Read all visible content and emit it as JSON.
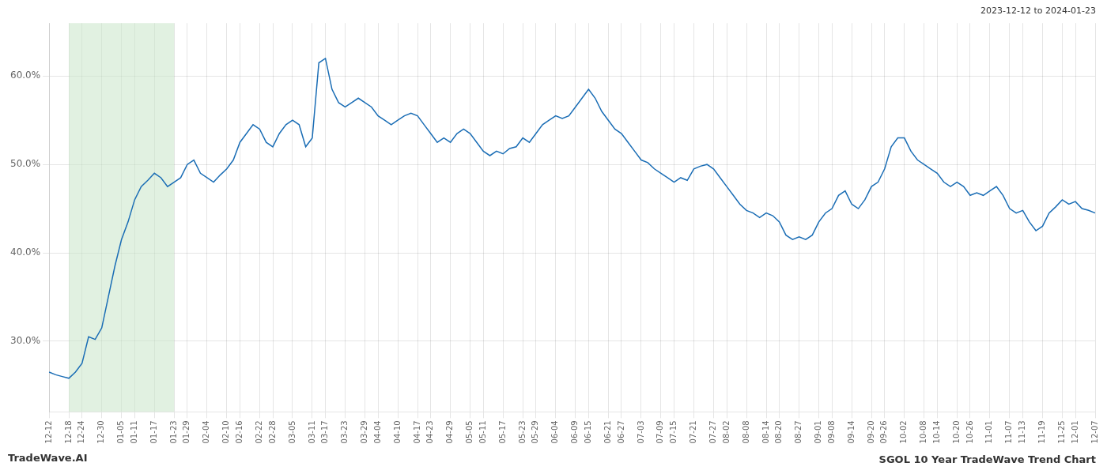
{
  "chart_data": {
    "type": "line",
    "title": "SGOL 10 Year TradeWave Trend Chart",
    "subtitle": "2023-12-12 to 2024-01-23",
    "annotations": [
      "TradeWave.AI"
    ],
    "categories": [
      "12-12",
      null,
      null,
      "12-18",
      null,
      "12-24",
      null,
      null,
      "12-30",
      null,
      null,
      "01-05",
      null,
      "01-11",
      null,
      null,
      "01-17",
      null,
      null,
      "01-23",
      null,
      "01-29",
      null,
      null,
      "02-04",
      null,
      null,
      "02-10",
      null,
      "02-16",
      null,
      null,
      "02-22",
      null,
      "02-28",
      null,
      null,
      "03-05",
      null,
      null,
      "03-11",
      null,
      "03-17",
      null,
      null,
      "03-23",
      null,
      null,
      "03-29",
      null,
      "04-04",
      null,
      null,
      "04-10",
      null,
      null,
      "04-17",
      null,
      "04-23",
      null,
      null,
      "04-29",
      null,
      null,
      "05-05",
      null,
      "05-11",
      null,
      null,
      "05-17",
      null,
      null,
      "05-23",
      null,
      "05-29",
      null,
      null,
      "06-04",
      null,
      null,
      "06-09",
      null,
      "06-15",
      null,
      null,
      "06-21",
      null,
      "06-27",
      null,
      null,
      "07-03",
      null,
      null,
      "07-09",
      null,
      "07-15",
      null,
      null,
      "07-21",
      null,
      null,
      "07-27",
      null,
      "08-02",
      null,
      null,
      "08-08",
      null,
      null,
      "08-14",
      null,
      "08-20",
      null,
      null,
      "08-27",
      null,
      null,
      "09-01",
      null,
      "09-08",
      null,
      null,
      "09-14",
      null,
      null,
      "09-20",
      null,
      "09-26",
      null,
      null,
      "10-02",
      null,
      null,
      "10-08",
      null,
      "10-14",
      null,
      null,
      "10-20",
      null,
      "10-26",
      null,
      null,
      "11-01",
      null,
      null,
      "11-07",
      null,
      "11-13",
      null,
      null,
      "11-19",
      null,
      null,
      "11-25",
      null,
      "12-01",
      null,
      null,
      "12-07"
    ],
    "values": [
      26.5,
      26.2,
      26.0,
      25.8,
      26.5,
      27.5,
      30.5,
      30.2,
      31.5,
      35.0,
      38.5,
      41.5,
      43.5,
      46.0,
      47.5,
      48.2,
      49.0,
      48.5,
      47.5,
      48.0,
      48.5,
      50.0,
      50.5,
      49.0,
      48.5,
      48.0,
      48.8,
      49.5,
      50.5,
      52.5,
      53.5,
      54.5,
      54.0,
      52.5,
      52.0,
      53.5,
      54.5,
      55.0,
      54.5,
      52.0,
      53.0,
      61.5,
      62.0,
      58.5,
      57.0,
      56.5,
      57.0,
      57.5,
      57.0,
      56.5,
      55.5,
      55.0,
      54.5,
      55.0,
      55.5,
      55.8,
      55.5,
      54.5,
      53.5,
      52.5,
      53.0,
      52.5,
      53.5,
      54.0,
      53.5,
      52.5,
      51.5,
      51.0,
      51.5,
      51.2,
      51.8,
      52.0,
      53.0,
      52.5,
      53.5,
      54.5,
      55.0,
      55.5,
      55.2,
      55.5,
      56.5,
      57.5,
      58.5,
      57.5,
      56.0,
      55.0,
      54.0,
      53.5,
      52.5,
      51.5,
      50.5,
      50.2,
      49.5,
      49.0,
      48.5,
      48.0,
      48.5,
      48.2,
      49.5,
      49.8,
      50.0,
      49.5,
      48.5,
      47.5,
      46.5,
      45.5,
      44.8,
      44.5,
      44.0,
      44.5,
      44.2,
      43.5,
      42.0,
      41.5,
      41.8,
      41.5,
      42.0,
      43.5,
      44.5,
      45.0,
      46.5,
      47.0,
      45.5,
      45.0,
      46.0,
      47.5,
      48.0,
      49.5,
      52.0,
      53.0,
      53.0,
      51.5,
      50.5,
      50.0,
      49.5,
      49.0,
      48.0,
      47.5,
      48.0,
      47.5,
      46.5,
      46.8,
      46.5,
      47.0,
      47.5,
      46.5,
      45.0,
      44.5,
      44.8,
      43.5,
      42.5,
      43.0,
      44.5,
      45.2,
      46.0,
      45.5,
      45.8,
      45.0,
      44.8,
      44.5
    ],
    "color": "#1a6db5",
    "ylim": [
      22,
      66
    ],
    "yticks": [
      {
        "value": 30.0,
        "label": "30.0%"
      },
      {
        "value": 40.0,
        "label": "40.0%"
      },
      {
        "value": 50.0,
        "label": "50.0%"
      },
      {
        "value": 60.0,
        "label": "60.0%"
      }
    ],
    "grid": true,
    "highlight": {
      "start": "12-18",
      "end": "01-23",
      "color": "#c8e6c8"
    }
  }
}
